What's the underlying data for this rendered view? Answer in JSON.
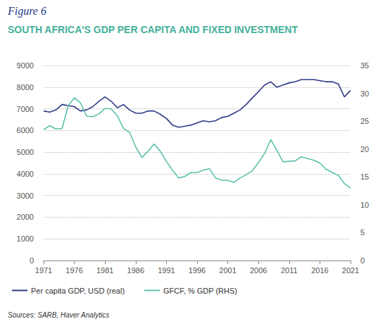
{
  "chart_data": {
    "type": "line",
    "figure_label": "Figure 6",
    "title": "SOUTH AFRICA'S GDP PER CAPITA AND FIXED INVESTMENT",
    "source": "Sources: SARB, Haver Analytics",
    "x": [
      1971,
      1972,
      1973,
      1974,
      1975,
      1976,
      1977,
      1978,
      1979,
      1980,
      1981,
      1982,
      1983,
      1984,
      1985,
      1986,
      1987,
      1988,
      1989,
      1990,
      1991,
      1992,
      1993,
      1994,
      1995,
      1996,
      1997,
      1998,
      1999,
      2000,
      2001,
      2002,
      2003,
      2004,
      2005,
      2006,
      2007,
      2008,
      2009,
      2010,
      2011,
      2012,
      2013,
      2014,
      2015,
      2016,
      2017,
      2018,
      2019,
      2020,
      2021
    ],
    "xlim": [
      1971,
      2021
    ],
    "xticks": [
      1971,
      1976,
      1981,
      1986,
      1991,
      1996,
      2001,
      2006,
      2011,
      2016,
      2021
    ],
    "ylim": [
      0,
      9000
    ],
    "yticks": [
      0,
      1000,
      2000,
      3000,
      4000,
      5000,
      6000,
      7000,
      8000,
      9000
    ],
    "y2lim": [
      0,
      35
    ],
    "y2ticks": [
      0,
      5,
      10,
      15,
      20,
      25,
      30,
      35
    ],
    "grid": true,
    "legend": "bottom",
    "series": [
      {
        "name": "Per capita GDP, USD (real)",
        "color": "#2e3a87",
        "values": [
          6900,
          6850,
          6950,
          7200,
          7150,
          7100,
          6900,
          6950,
          7100,
          7350,
          7550,
          7350,
          7050,
          7200,
          6950,
          6800,
          6800,
          6900,
          6900,
          6750,
          6550,
          6250,
          6150,
          6200,
          6250,
          6350,
          6450,
          6400,
          6450,
          6600,
          6650,
          6800,
          6950,
          7200,
          7500,
          7800,
          8100,
          8250,
          8000,
          8100,
          8200,
          8250,
          8350,
          8350,
          8350,
          8300,
          8250,
          8250,
          8150,
          7550,
          7850
        ]
      },
      {
        "name": "GFCF, % GDP (RHS)",
        "color": "#5cc1ad",
        "axis": "y2",
        "values": [
          23.5,
          24.2,
          23.6,
          23.7,
          27.8,
          29.2,
          28.3,
          25.9,
          25.8,
          26.3,
          27.3,
          27.2,
          26.0,
          23.7,
          23.0,
          20.4,
          18.5,
          19.6,
          20.9,
          19.6,
          17.8,
          16.2,
          14.8,
          15.1,
          15.8,
          15.8,
          16.2,
          16.5,
          14.8,
          14.4,
          14.4,
          14.0,
          14.8,
          15.4,
          16.1,
          17.6,
          19.2,
          21.7,
          19.8,
          17.7,
          17.8,
          17.9,
          18.6,
          18.3,
          18.0,
          17.5,
          16.4,
          15.8,
          15.3,
          13.8,
          13.0
        ]
      }
    ]
  }
}
